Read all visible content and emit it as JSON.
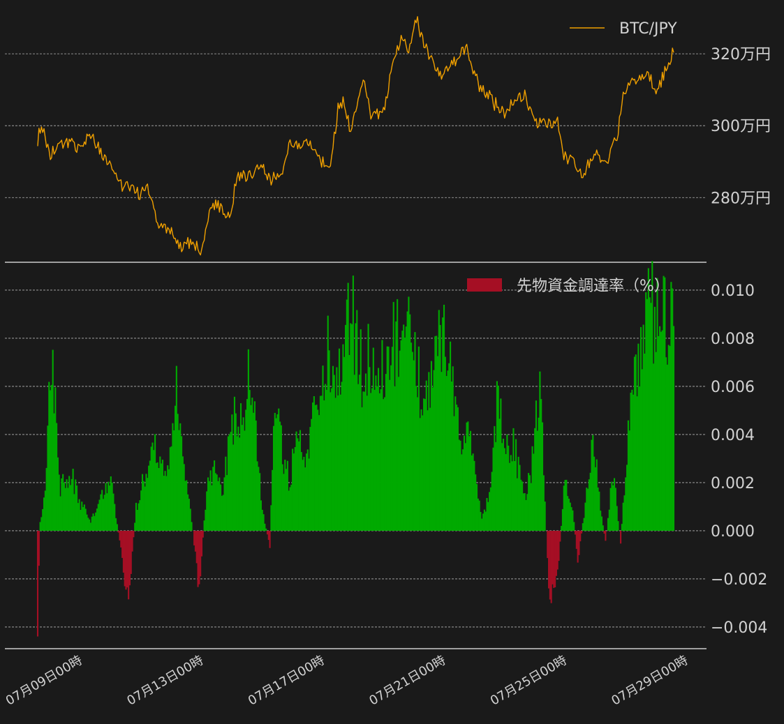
{
  "chart_data": [
    {
      "type": "line",
      "series": [
        {
          "name": "BTC/JPY"
        }
      ],
      "x": {
        "start": "07月07日12時",
        "end": "07月28日12時",
        "step_hours": 1
      },
      "y_unit": "万円",
      "ylim": [
        262,
        334
      ],
      "yticks": [
        280,
        300,
        320
      ],
      "ytick_labels": [
        "280万円",
        "300万円",
        "320万円"
      ],
      "grid": true,
      "legend": "top-right",
      "keypoints": [
        [
          "07月07日12時",
          295
        ],
        [
          "07月07日14時",
          300
        ],
        [
          "07月07日22時",
          292
        ],
        [
          "07月08日10時",
          296
        ],
        [
          "07月08日20時",
          294
        ],
        [
          "07月09日06時",
          297
        ],
        [
          "07月09日20時",
          290
        ],
        [
          "07月10日06時",
          284
        ],
        [
          "07月10日20時",
          281
        ],
        [
          "07月11日04時",
          282
        ],
        [
          "07月11日12時",
          272
        ],
        [
          "07月11日20時",
          271
        ],
        [
          "07月12日06時",
          266
        ],
        [
          "07月12日14時",
          268
        ],
        [
          "07月12日22时",
          265
        ],
        [
          "07月13日06時",
          278
        ],
        [
          "07月13日12時",
          277
        ],
        [
          "07月13日20時",
          275
        ],
        [
          "07月14日02時",
          286
        ],
        [
          "07月14日14时",
          287
        ],
        [
          "07月14日22時",
          289
        ],
        [
          "07月15日06時",
          285
        ],
        [
          "07月15日14時",
          287
        ],
        [
          "07月15日20時",
          296
        ],
        [
          "07月16日06時",
          294
        ],
        [
          "07月16日12時",
          295
        ],
        [
          "07月16日22時",
          290
        ],
        [
          "07月17日04時",
          289
        ],
        [
          "07月17日10時",
          305
        ],
        [
          "07月17日14時",
          307
        ],
        [
          "07月17日20時",
          298
        ],
        [
          "07月18日02時",
          307
        ],
        [
          "07月18日06時",
          313
        ],
        [
          "07月18日12時",
          303
        ],
        [
          "07月18日22時",
          304
        ],
        [
          "07月19日06時",
          318
        ],
        [
          "07月19日12時",
          324
        ],
        [
          "07月19日18時",
          321
        ],
        [
          "07月20日00時",
          330
        ],
        [
          "07月20日04時",
          325
        ],
        [
          "07月20日12時",
          318
        ],
        [
          "07月20日20時",
          314
        ],
        [
          "07月21日06時",
          318
        ],
        [
          "07月21日16時",
          322
        ],
        [
          "07月21日20時",
          317
        ],
        [
          "07月22日02時",
          311
        ],
        [
          "07月22日10時",
          308
        ],
        [
          "07月22日22時",
          303
        ],
        [
          "07月23日06時",
          307
        ],
        [
          "07月23日14時",
          309
        ],
        [
          "07月23日18時",
          304
        ],
        [
          "07月24日00時",
          301
        ],
        [
          "07月24日12時",
          300
        ],
        [
          "07月24日16時",
          302
        ],
        [
          "07月24日20時",
          292
        ],
        [
          "07月25日04時",
          290
        ],
        [
          "07月25日12時",
          286
        ],
        [
          "07月25日22時",
          292
        ],
        [
          "07月26日06時",
          290
        ],
        [
          "07月26日16時",
          298
        ],
        [
          "07月26日20時",
          310
        ],
        [
          "07月27日04時",
          312
        ],
        [
          "07月27日16時",
          314
        ],
        [
          "07月27日22時",
          309
        ],
        [
          "07月28日06時",
          316
        ],
        [
          "07月28日12時",
          321
        ]
      ]
    },
    {
      "type": "bar",
      "series": [
        {
          "name": "先物資金調達率（%）"
        }
      ],
      "x": {
        "start": "07月07日12時",
        "end": "07月28日12時",
        "step_hours": 1
      },
      "ylim": [
        -0.0049,
        0.0111
      ],
      "yticks": [
        -0.004,
        -0.002,
        0.0,
        0.002,
        0.004,
        0.006,
        0.008,
        0.01
      ],
      "ytick_labels": [
        "−0.004",
        "−0.002",
        "0.000",
        "0.002",
        "0.004",
        "0.006",
        "0.008",
        "0.010"
      ],
      "grid": true,
      "legend": "top-right",
      "colors": {
        "positive": "#00aa00",
        "negative": "#a50f24"
      },
      "keypoints": [
        [
          "07月07日12時",
          -0.0038
        ],
        [
          "07月07日14時",
          0.0003
        ],
        [
          "07月07日18時",
          0.002
        ],
        [
          "07月07日22時",
          0.0075
        ],
        [
          "07月08日02時",
          0.0055
        ],
        [
          "07月08日06時",
          0.0018
        ],
        [
          "07月08日14時",
          0.0025
        ],
        [
          "07月08日22時",
          0.0012
        ],
        [
          "07月09日06時",
          0.0004
        ],
        [
          "07月09日14時",
          0.0014
        ],
        [
          "07月09日22時",
          0.002
        ],
        [
          "07月10日06時",
          -0.0008
        ],
        [
          "07月10日12時",
          -0.003
        ],
        [
          "07月10日18時",
          0.001
        ],
        [
          "07月11日02時",
          0.0025
        ],
        [
          "07月11日10時",
          0.0035
        ],
        [
          "07月11日18時",
          0.0025
        ],
        [
          "07月12日02時",
          0.0058
        ],
        [
          "07月12日08時",
          0.0025
        ],
        [
          "07月12日14時",
          0.0005
        ],
        [
          "07月12日20時",
          -0.0025
        ],
        [
          "07月13日02時",
          0.0018
        ],
        [
          "07月13日08時",
          0.003
        ],
        [
          "07月13日14時",
          0.0015
        ],
        [
          "07月13日22時",
          0.0045
        ],
        [
          "07月14日06時",
          0.005
        ],
        [
          "07月14日12時",
          0.0065
        ],
        [
          "07月14日18時",
          0.0035
        ],
        [
          "07月14日22時",
          0.001
        ],
        [
          "07月15日04時",
          -0.0008
        ],
        [
          "07月15日08時",
          0.0065
        ],
        [
          "07月15日14時",
          0.0035
        ],
        [
          "07月15日20時",
          0.002
        ],
        [
          "07月16日02時",
          0.0045
        ],
        [
          "07月16日08時",
          0.0025
        ],
        [
          "07月16日14時",
          0.0045
        ],
        [
          "07月16日20時",
          0.006
        ],
        [
          "07月17日02時",
          0.008
        ],
        [
          "07月17日08時",
          0.0072
        ],
        [
          "07月17日14時",
          0.0065
        ],
        [
          "07月17日20時",
          0.01
        ],
        [
          "07月18日00時",
          0.0085
        ],
        [
          "07月18日06時",
          0.0065
        ],
        [
          "07月18日12時",
          0.0078
        ],
        [
          "07月18日18時",
          0.0068
        ],
        [
          "07月19日00時",
          0.0072
        ],
        [
          "07月19日08時",
          0.008
        ],
        [
          "07月19日16時",
          0.0085
        ],
        [
          "07月20日00時",
          0.007
        ],
        [
          "07月20日08時",
          0.0055
        ],
        [
          "07月20日16時",
          0.009
        ],
        [
          "07月20日22時",
          0.0085
        ],
        [
          "07月21日04時",
          0.0062
        ],
        [
          "07月21日10時",
          0.004
        ],
        [
          "07月21日16時",
          0.005
        ],
        [
          "07月21日22時",
          0.0025
        ],
        [
          "07月22日04時",
          0.0005
        ],
        [
          "07月22日10時",
          0.0015
        ],
        [
          "07月22日16時",
          0.0055
        ],
        [
          "07月22日22時",
          0.004
        ],
        [
          "07月23日06時",
          0.0035
        ],
        [
          "07月23日14時",
          0.0015
        ],
        [
          "07月23日20時",
          0.003
        ],
        [
          "07月24日02時",
          0.007
        ],
        [
          "07月24日06時",
          0.001
        ],
        [
          "07月24日10時",
          -0.003
        ],
        [
          "07月24日16時",
          -0.002
        ],
        [
          "07月24日22時",
          0.0025
        ],
        [
          "07月25日04時",
          0.0008
        ],
        [
          "07月25日08時",
          -0.0012
        ],
        [
          "07月25日14時",
          0.001
        ],
        [
          "07月25日20時",
          0.0045
        ],
        [
          "07月26日02時",
          0.001
        ],
        [
          "07月26日06時",
          -0.0005
        ],
        [
          "07月26日12時",
          0.0025
        ],
        [
          "07月26日18時",
          -0.0005
        ],
        [
          "07月27日00時",
          0.004
        ],
        [
          "07月27日06時",
          0.0075
        ],
        [
          "07月27日12時",
          0.0085
        ],
        [
          "07月27日18時",
          0.0095
        ],
        [
          "07月28日00時",
          0.009
        ],
        [
          "07月28日06時",
          0.0088
        ],
        [
          "07月28日12時",
          0.0085
        ]
      ]
    }
  ],
  "x_tick_labels": [
    "07月09日00時",
    "07月13日00時",
    "07月17日00時",
    "07月21日00時",
    "07月25日00時",
    "07月29日00時"
  ],
  "colors": {
    "background": "#1a1a1a",
    "line": "#f0a000",
    "text": "#d2d2d2",
    "grid": "#b4b4b4",
    "separator": "#cccccc"
  }
}
